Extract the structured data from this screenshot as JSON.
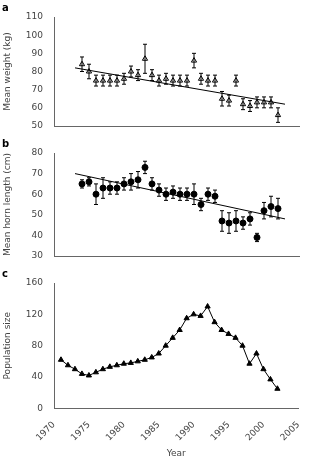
{
  "chart_data": [
    {
      "type": "scatter",
      "title": "a",
      "ylabel": "Mean weight (kg)",
      "xlim": [
        1970,
        2005
      ],
      "xticks": [
        1970,
        1975,
        1980,
        1985,
        1990,
        1995,
        2000,
        2005
      ],
      "ylim": [
        50,
        110
      ],
      "yticks": [
        50,
        60,
        70,
        80,
        90,
        100,
        110
      ],
      "grid": false,
      "tick_labels": "y",
      "series": [
        {
          "x": [
            1974,
            1975,
            1976,
            1977,
            1978,
            1979,
            1980,
            1981,
            1982,
            1983,
            1984,
            1985,
            1986,
            1987,
            1988,
            1989,
            1990,
            1991,
            1992,
            1993,
            1994,
            1995,
            1996,
            1997,
            1998,
            1999,
            2000,
            2001,
            2002
          ],
          "values": [
            84,
            80,
            75,
            75,
            75,
            75,
            76,
            80,
            78,
            87,
            78,
            75,
            76,
            75,
            75,
            75,
            86,
            76,
            75,
            75,
            65,
            64,
            75,
            62,
            61,
            63,
            63,
            63,
            56
          ],
          "yerr": [
            4,
            4,
            3,
            3,
            3,
            3,
            3,
            3,
            3,
            8,
            3,
            3,
            3,
            3,
            3,
            3,
            4,
            3,
            3,
            3,
            4,
            3,
            3,
            3,
            3,
            3,
            3,
            3,
            4
          ],
          "color": "#000000",
          "marker": "triangle-open"
        },
        {
          "type": "line",
          "x": [
            1973,
            2003
          ],
          "values": [
            82,
            62
          ],
          "color": "#000000"
        }
      ]
    },
    {
      "type": "scatter",
      "title": "b",
      "ylabel": "Mean horn length (cm)",
      "xlim": [
        1970,
        2005
      ],
      "xticks": [
        1970,
        1975,
        1980,
        1985,
        1990,
        1995,
        2000,
        2005
      ],
      "ylim": [
        30,
        80
      ],
      "yticks": [
        30,
        40,
        50,
        60,
        70,
        80
      ],
      "grid": false,
      "tick_labels": "y",
      "series": [
        {
          "x": [
            1974,
            1975,
            1976,
            1977,
            1978,
            1979,
            1980,
            1981,
            1982,
            1983,
            1984,
            1985,
            1986,
            1987,
            1988,
            1989,
            1990,
            1991,
            1992,
            1993,
            1994,
            1995,
            1996,
            1997,
            1998,
            1999,
            2000,
            2001,
            2002
          ],
          "values": [
            65,
            66,
            60,
            63,
            63,
            63,
            65,
            66,
            67,
            73,
            65,
            62,
            60,
            61,
            60,
            60,
            60,
            55,
            60,
            59,
            47,
            46,
            47,
            46,
            48,
            39,
            52,
            54,
            53
          ],
          "yerr": [
            2,
            2,
            5,
            5,
            3,
            3,
            3,
            4,
            4,
            3,
            3,
            3,
            3,
            3,
            3,
            3,
            5,
            3,
            3,
            3,
            5,
            5,
            5,
            3,
            3,
            2,
            4,
            5,
            5
          ],
          "color": "#000000",
          "marker": "circle"
        },
        {
          "type": "line",
          "x": [
            1973,
            2003
          ],
          "values": [
            70,
            48
          ],
          "color": "#000000"
        }
      ]
    },
    {
      "type": "line",
      "title": "c",
      "ylabel": "Population size",
      "xlabel": "Year",
      "xlim": [
        1970,
        2005
      ],
      "xticks": [
        1970,
        1975,
        1980,
        1985,
        1990,
        1995,
        2000,
        2005
      ],
      "ylim": [
        0,
        160
      ],
      "yticks": [
        0,
        40,
        80,
        120,
        160
      ],
      "grid": false,
      "x": [
        1971,
        1972,
        1973,
        1974,
        1975,
        1976,
        1977,
        1978,
        1979,
        1980,
        1981,
        1982,
        1983,
        1984,
        1985,
        1986,
        1987,
        1988,
        1989,
        1990,
        1991,
        1992,
        1993,
        1994,
        1995,
        1996,
        1997,
        1998,
        1999,
        2000,
        2001,
        2002
      ],
      "series": [
        {
          "values": [
            62,
            55,
            50,
            44,
            42,
            46,
            50,
            53,
            55,
            57,
            58,
            60,
            62,
            65,
            70,
            80,
            90,
            100,
            115,
            120,
            118,
            130,
            110,
            100,
            95,
            90,
            80,
            57,
            70,
            50,
            37,
            25
          ],
          "color": "#000000",
          "marker": "triangle"
        }
      ]
    }
  ]
}
